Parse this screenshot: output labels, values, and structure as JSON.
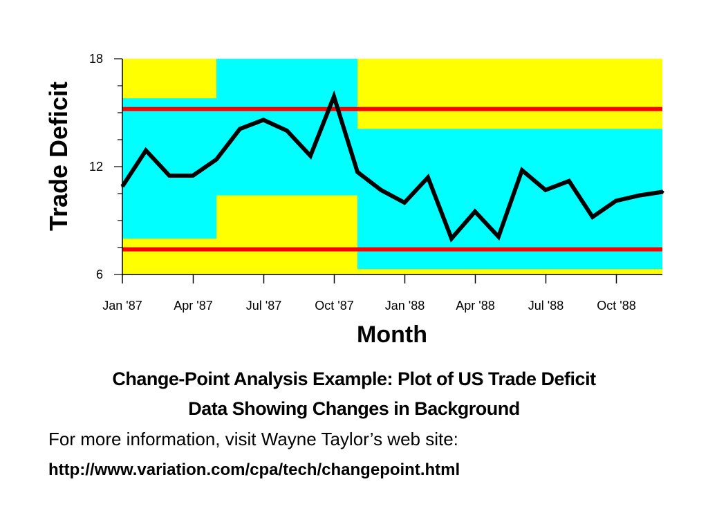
{
  "chart_data": {
    "type": "line",
    "ylabel": "Trade Deficit",
    "xlabel": "Month",
    "ylim": [
      6,
      18
    ],
    "yticks": [
      "18",
      "12",
      "6"
    ],
    "ytick_values": [
      18,
      12,
      6
    ],
    "xtick_labels": [
      "Jan '87",
      "Apr '87",
      "Jul '87",
      "Oct '87",
      "Jan '88",
      "Apr '88",
      "Jul '88",
      "Oct '88"
    ],
    "xtick_index": [
      0,
      3,
      6,
      9,
      12,
      15,
      18,
      21
    ],
    "x": [
      "Jan '87",
      "Feb '87",
      "Mar '87",
      "Apr '87",
      "May '87",
      "Jun '87",
      "Jul '87",
      "Aug '87",
      "Sep '87",
      "Oct '87",
      "Nov '87",
      "Dec '87",
      "Jan '88",
      "Feb '88",
      "Mar '88",
      "Apr '88",
      "May '88",
      "Jun '88",
      "Jul '88",
      "Aug '88",
      "Sep '88",
      "Oct '88",
      "Nov '88",
      "Dec '88"
    ],
    "series": [
      {
        "values": [
          10.9,
          12.9,
          11.5,
          11.5,
          12.4,
          14.1,
          14.6,
          14.0,
          12.6,
          15.9,
          11.7,
          10.7,
          10.0,
          11.4,
          8.0,
          9.5,
          8.1,
          11.8,
          10.7,
          11.2,
          9.2,
          10.1,
          10.4,
          10.6
        ]
      }
    ],
    "control_limits": [
      15.2,
      7.4
    ],
    "background_segments": [
      {
        "from": "Jan '87",
        "to": "May '87",
        "band_low": 8.0,
        "band_high": 15.8
      },
      {
        "from": "May '87",
        "to": "Nov '87",
        "band_low": 10.4,
        "band_high": 18.0
      },
      {
        "from": "Nov '87",
        "to": "Dec '88",
        "band_low": 6.3,
        "band_high": 14.1
      }
    ],
    "colors": {
      "band": "#00ffff",
      "outside": "#ffff00",
      "line": "#000000",
      "limits": "#ff0000"
    },
    "grid": false
  },
  "caption": {
    "line1": "Change-Point Analysis Example: Plot of US Trade Deficit",
    "line2": "Data Showing Changes in Background"
  },
  "info": {
    "text": "For more information, visit Wayne Taylor’s web site:",
    "url": "http://www.variation.com/cpa/tech/changepoint.html"
  }
}
